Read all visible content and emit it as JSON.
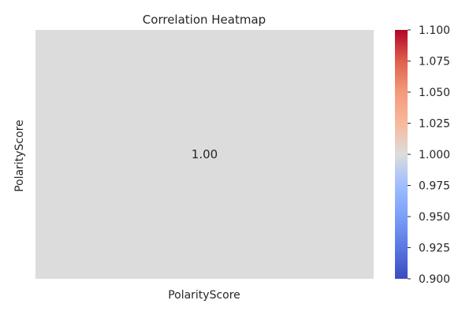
{
  "chart_data": {
    "type": "heatmap",
    "title": "Correlation Heatmap",
    "x_categories": [
      "PolarityScore"
    ],
    "y_categories": [
      "PolarityScore"
    ],
    "values": [
      [
        1.0
      ]
    ],
    "cell_labels": [
      [
        "1.00"
      ]
    ],
    "colorbar": {
      "colormap": "coolwarm",
      "vmin": 0.9,
      "vmax": 1.1,
      "ticks": [
        "0.900",
        "0.925",
        "0.950",
        "0.975",
        "1.000",
        "1.025",
        "1.050",
        "1.075",
        "1.100"
      ],
      "color_low": "#3b4cc0",
      "color_mid": "#dddcdc",
      "color_high": "#b40426"
    },
    "grid": false
  }
}
